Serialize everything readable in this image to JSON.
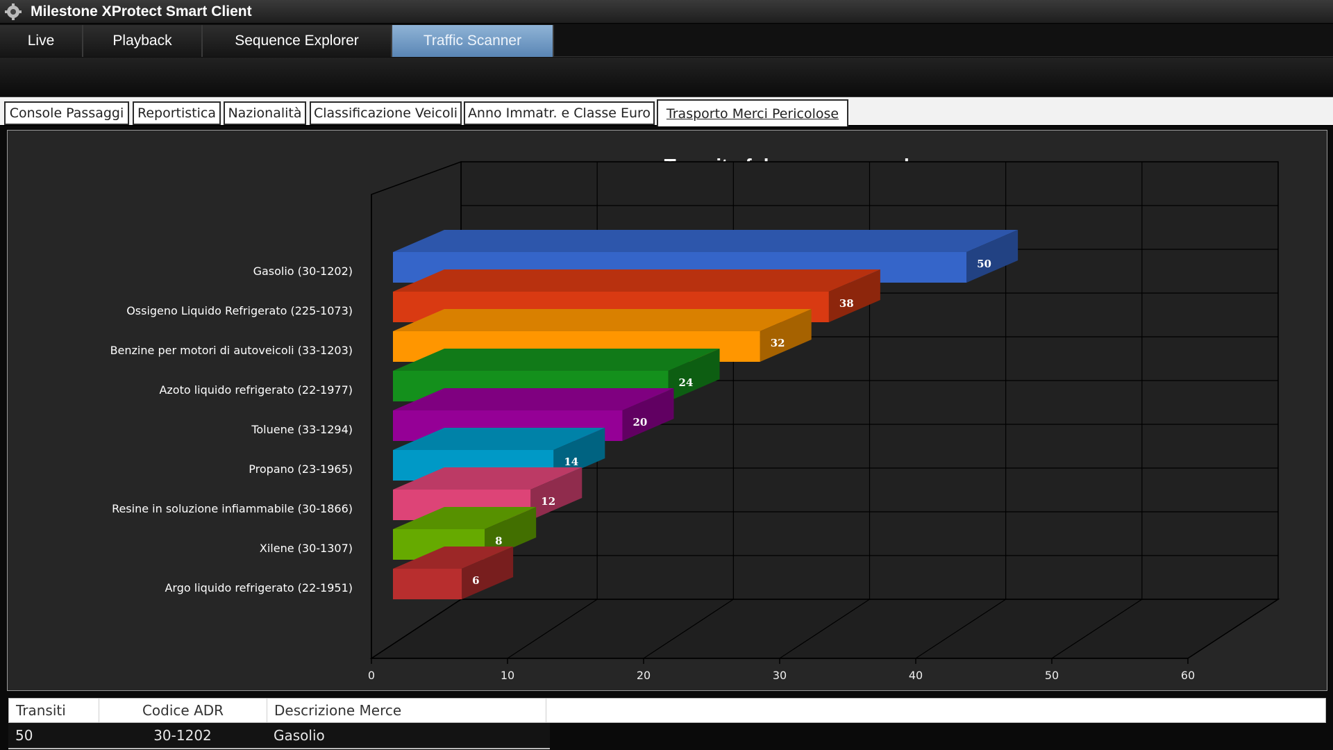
{
  "window": {
    "title": "Milestone XProtect Smart Client"
  },
  "main_tabs": [
    {
      "label": "Live",
      "active": false
    },
    {
      "label": "Playback",
      "active": false
    },
    {
      "label": "Sequence Explorer",
      "active": false
    },
    {
      "label": "Traffic Scanner",
      "active": true
    }
  ],
  "sub_tabs": [
    {
      "label": "Console Passaggi",
      "active": false
    },
    {
      "label": "Reportistica",
      "active": false
    },
    {
      "label": "Nazionalità",
      "active": false
    },
    {
      "label": "Classificazione Veicoli",
      "active": false
    },
    {
      "label": "Anno Immatr. e Classe Euro",
      "active": false
    },
    {
      "label": "Trasporto Merci Pericolose",
      "active": true
    }
  ],
  "chart_data": {
    "type": "bar",
    "orientation": "horizontal",
    "style": "3d",
    "title": "Transit of dangerous goods",
    "categories": [
      "Gasolio (30-1202)",
      "Ossigeno Liquido Refrigerato (225-1073)",
      "Benzine per motori di autoveicoli (33-1203)",
      "Azoto liquido refrigerato (22-1977)",
      "Toluene (33-1294)",
      "Propano (23-1965)",
      "Resine in soluzione infiammabile (30-1866)",
      "Xilene (30-1307)",
      "Argo liquido refrigerato (22-1951)"
    ],
    "values": [
      50,
      38,
      32,
      24,
      20,
      14,
      12,
      8,
      6
    ],
    "colors": [
      "#3565c9",
      "#d93a12",
      "#ff9600",
      "#14901c",
      "#950096",
      "#0099c6",
      "#dd4477",
      "#66aa00",
      "#b82e2e"
    ],
    "xlim": [
      0,
      60
    ],
    "xticks": [
      0,
      10,
      20,
      30,
      40,
      50,
      60
    ],
    "grid": true
  },
  "table": {
    "columns": [
      "Transiti",
      "Codice ADR",
      "Descrizione Merce"
    ],
    "rows": [
      {
        "transiti": "50",
        "codice": "30-1202",
        "descrizione": "Gasolio"
      }
    ]
  }
}
